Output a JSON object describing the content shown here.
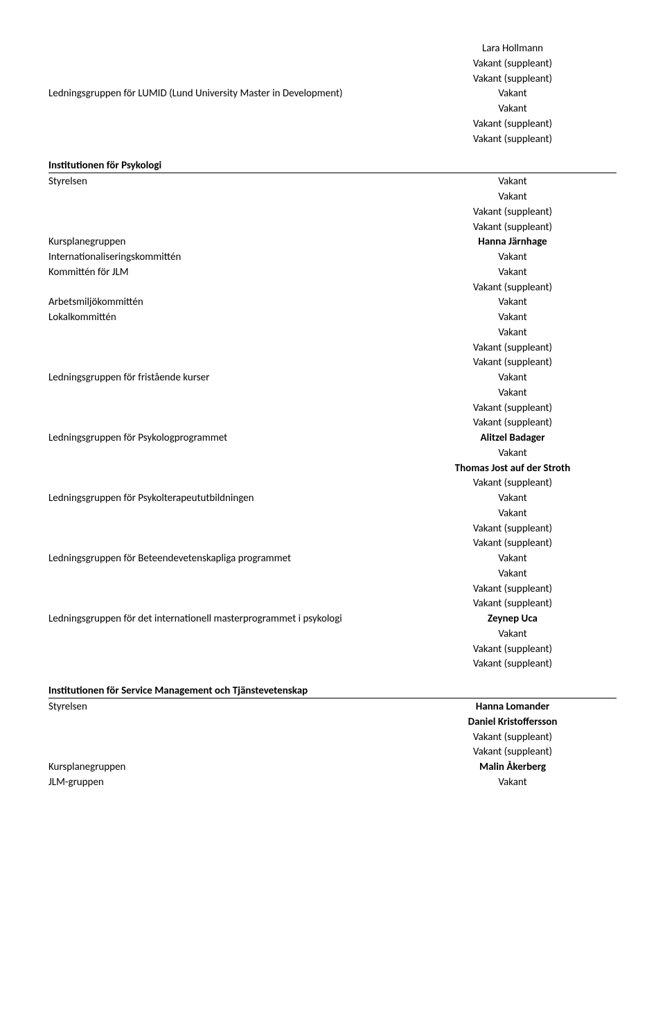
{
  "top_right": [
    {
      "text": "Lara Hollmann",
      "bold": false
    },
    {
      "text": "Vakant (suppleant)",
      "bold": false
    },
    {
      "text": "Vakant (suppleant)",
      "bold": false
    }
  ],
  "lumid": {
    "label": "Ledningsgruppen för LUMID (Lund University Master in Development)",
    "values": [
      {
        "text": "Vakant",
        "bold": false
      },
      {
        "text": "Vakant",
        "bold": false
      },
      {
        "text": "Vakant (suppleant)",
        "bold": false
      },
      {
        "text": "Vakant (suppleant)",
        "bold": false
      }
    ]
  },
  "psykologi": {
    "header": "Institutionen för Psykologi",
    "groups": [
      {
        "label": "Styrelsen",
        "values": [
          {
            "text": "Vakant",
            "bold": false
          },
          {
            "text": "Vakant",
            "bold": false
          },
          {
            "text": "Vakant (suppleant)",
            "bold": false
          },
          {
            "text": "Vakant (suppleant)",
            "bold": false
          }
        ]
      },
      {
        "label": "Kursplanegruppen",
        "values": [
          {
            "text": "Hanna Järnhage",
            "bold": true
          }
        ]
      },
      {
        "label": "Internationaliseringskommittén",
        "values": [
          {
            "text": "Vakant",
            "bold": false
          }
        ]
      },
      {
        "label": "Kommittén för JLM",
        "values": [
          {
            "text": "Vakant",
            "bold": false
          },
          {
            "text": "Vakant (suppleant)",
            "bold": false
          }
        ]
      },
      {
        "label": "Arbetsmiljökommittén",
        "values": [
          {
            "text": "Vakant",
            "bold": false
          }
        ]
      },
      {
        "label": "Lokalkommittén",
        "values": [
          {
            "text": "Vakant",
            "bold": false
          },
          {
            "text": "Vakant",
            "bold": false
          },
          {
            "text": "Vakant (suppleant)",
            "bold": false
          },
          {
            "text": "Vakant (suppleant)",
            "bold": false
          }
        ]
      },
      {
        "label": "Ledningsgruppen för fristående kurser",
        "values": [
          {
            "text": "Vakant",
            "bold": false
          },
          {
            "text": "Vakant",
            "bold": false
          },
          {
            "text": "Vakant (suppleant)",
            "bold": false
          },
          {
            "text": "Vakant (suppleant)",
            "bold": false
          }
        ]
      },
      {
        "label": "Ledningsgruppen för Psykologprogrammet",
        "values": [
          {
            "text": "Alitzel Badager",
            "bold": true
          },
          {
            "text": "Vakant",
            "bold": false
          },
          {
            "text": "Thomas Jost auf der Stroth",
            "bold": true
          },
          {
            "text": "Vakant (suppleant)",
            "bold": false
          }
        ]
      },
      {
        "label": "Ledningsgruppen för Psykolterapeututbildningen",
        "values": [
          {
            "text": "Vakant",
            "bold": false
          },
          {
            "text": "Vakant",
            "bold": false
          },
          {
            "text": "Vakant (suppleant)",
            "bold": false
          },
          {
            "text": "Vakant (suppleant)",
            "bold": false
          }
        ]
      },
      {
        "label": "Ledningsgruppen för Beteendevetenskapliga programmet",
        "values": [
          {
            "text": "Vakant",
            "bold": false
          },
          {
            "text": "Vakant",
            "bold": false
          },
          {
            "text": "Vakant (suppleant)",
            "bold": false
          },
          {
            "text": "Vakant (suppleant)",
            "bold": false
          }
        ]
      },
      {
        "label": "Ledningsgruppen för det internationell masterprogrammet i psykologi",
        "values": [
          {
            "text": "Zeynep Uca",
            "bold": true
          },
          {
            "text": "Vakant",
            "bold": false
          },
          {
            "text": "Vakant (suppleant)",
            "bold": false
          },
          {
            "text": "Vakant (suppleant)",
            "bold": false
          }
        ]
      }
    ]
  },
  "service": {
    "header": "Institutionen för Service Management och Tjänstevetenskap",
    "groups": [
      {
        "label": "Styrelsen",
        "values": [
          {
            "text": "Hanna Lomander",
            "bold": true
          },
          {
            "text": "Daniel Kristoffersson",
            "bold": true
          },
          {
            "text": "Vakant (suppleant)",
            "bold": false
          },
          {
            "text": "Vakant (suppleant)",
            "bold": false
          }
        ]
      },
      {
        "label": "Kursplanegruppen",
        "values": [
          {
            "text": "Malin Åkerberg",
            "bold": true
          }
        ]
      },
      {
        "label": "JLM-gruppen",
        "values": [
          {
            "text": "Vakant",
            "bold": false
          }
        ]
      }
    ]
  }
}
